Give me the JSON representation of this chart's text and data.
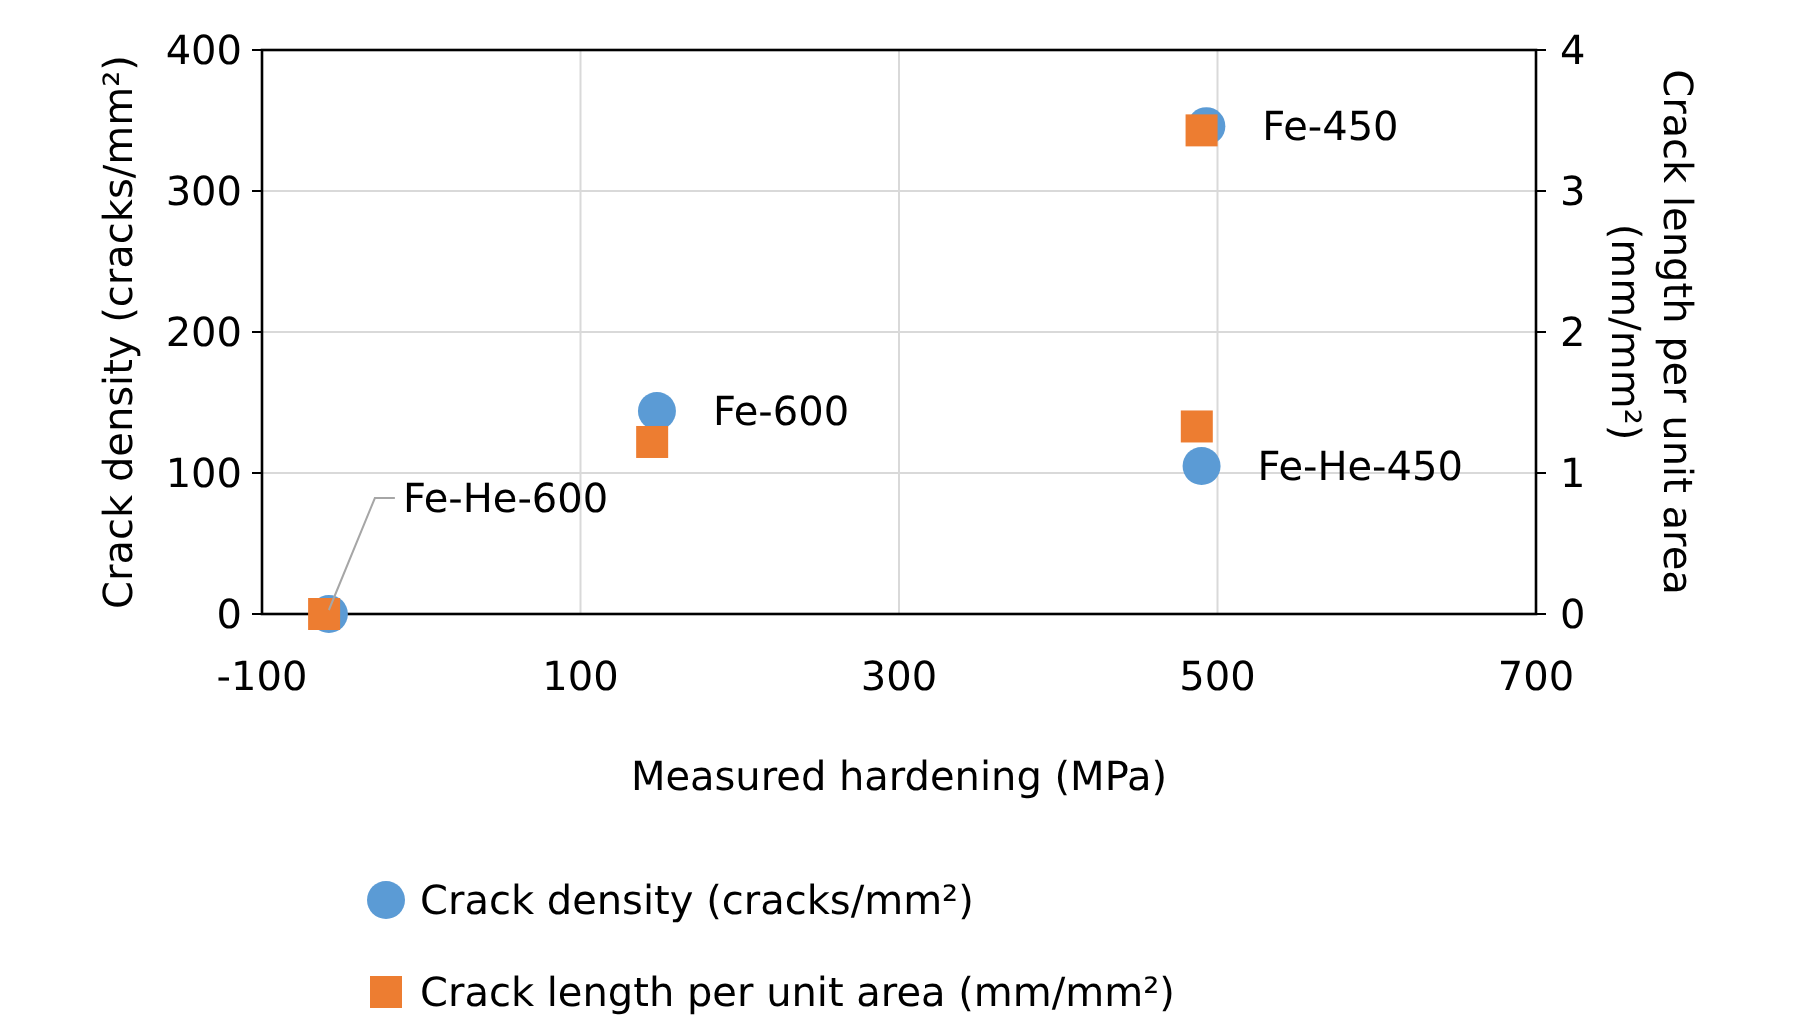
{
  "chart_data": {
    "type": "scatter",
    "xlabel": "Measured hardening (MPa)",
    "ylabel": "Crack density (cracks/mm²)",
    "y2label": "Crack length per unit area (mm/mm²)",
    "xlim": [
      -100,
      700
    ],
    "xticks": [
      -100,
      100,
      300,
      500,
      700
    ],
    "ylim": [
      0,
      400
    ],
    "yticks": [
      0,
      100,
      200,
      300,
      400
    ],
    "y2lim": [
      0,
      4
    ],
    "y2ticks": [
      0,
      1,
      2,
      3,
      4
    ],
    "grid": true,
    "legend": "bottom",
    "series": [
      {
        "name": "Crack density (cracks/mm²)",
        "color": "#5b9bd5",
        "marker": "circle",
        "x": [
          -58,
          148,
          493,
          490
        ],
        "values": [
          0,
          144,
          346,
          105
        ]
      },
      {
        "name": "Crack length per unit area (mm/mm²)",
        "color": "#ed7d31",
        "marker": "square",
        "axis": "y2",
        "x": [
          -61,
          145,
          490,
          487
        ],
        "values": [
          0,
          1.22,
          3.43,
          1.33
        ]
      }
    ],
    "annotations": [
      {
        "text": "Fe-He-600",
        "x": -58,
        "y": 0
      },
      {
        "text": "Fe-600",
        "x": 148,
        "y": 144
      },
      {
        "text": "Fe-450",
        "x": 493,
        "y": 346
      },
      {
        "text": "Fe-He-450",
        "x": 490,
        "y": 105
      }
    ]
  }
}
